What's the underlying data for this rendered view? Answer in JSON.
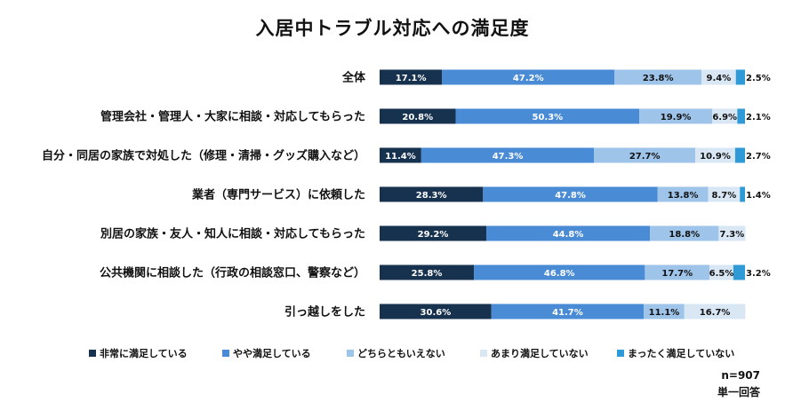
{
  "chart_data": {
    "type": "bar",
    "orientation": "horizontal",
    "stacked": true,
    "title": "入居中トラブル対応への満足度",
    "categories": [
      "全体",
      "管理会社・管理人・大家に相談・対応してもらった",
      "自分・同居の家族で対処した（修理・清掃・グッズ購入など）",
      "業者（専門サービス）に依頼した",
      "別居の家族・友人・知人に相談・対応してもらった",
      "公共機関に相談した（行政の相談窓口、警察など）",
      "引っ越しをした"
    ],
    "series": [
      {
        "name": "非常に満足している",
        "color": "#17324f",
        "values": [
          17.1,
          20.8,
          11.4,
          28.3,
          29.2,
          25.8,
          30.6
        ],
        "labels": [
          "17.1%",
          "20.8%",
          "11.4%",
          "28.3%",
          "29.2%",
          "25.8%",
          "30.6%"
        ]
      },
      {
        "name": "やや満足している",
        "color": "#4a8bd5",
        "values": [
          47.2,
          50.3,
          47.3,
          47.8,
          44.8,
          46.8,
          41.7
        ],
        "labels": [
          "47.2%",
          "50.3%",
          "47.3%",
          "47.8%",
          "44.8%",
          "46.8%",
          "41.7%"
        ]
      },
      {
        "name": "どちらともいえない",
        "color": "#9ec4ea",
        "values": [
          23.8,
          19.9,
          27.7,
          13.8,
          18.8,
          17.7,
          11.1
        ],
        "labels": [
          "23.8%",
          "19.9%",
          "27.7%",
          "13.8%",
          "18.8%",
          "17.7%",
          "11.1%"
        ]
      },
      {
        "name": "あまり満足していない",
        "color": "#d9e7f5",
        "values": [
          9.4,
          6.9,
          10.9,
          8.7,
          7.3,
          6.5,
          16.7
        ],
        "labels": [
          "9.4%",
          "6.9%",
          "10.9%",
          "8.7%",
          "7.3%",
          "6.5%",
          "16.7%"
        ]
      },
      {
        "name": "まったく満足していない",
        "color": "#2f9ad6",
        "values": [
          2.5,
          2.1,
          2.7,
          1.4,
          0,
          3.2,
          0
        ],
        "labels": [
          "2.5%",
          "2.1%",
          "2.7%",
          "1.4%",
          "",
          "3.2%",
          ""
        ]
      }
    ],
    "xlim": [
      0,
      100
    ],
    "grid": false,
    "legend_position": "bottom",
    "notes": [
      "n=907",
      "単一回答"
    ]
  }
}
